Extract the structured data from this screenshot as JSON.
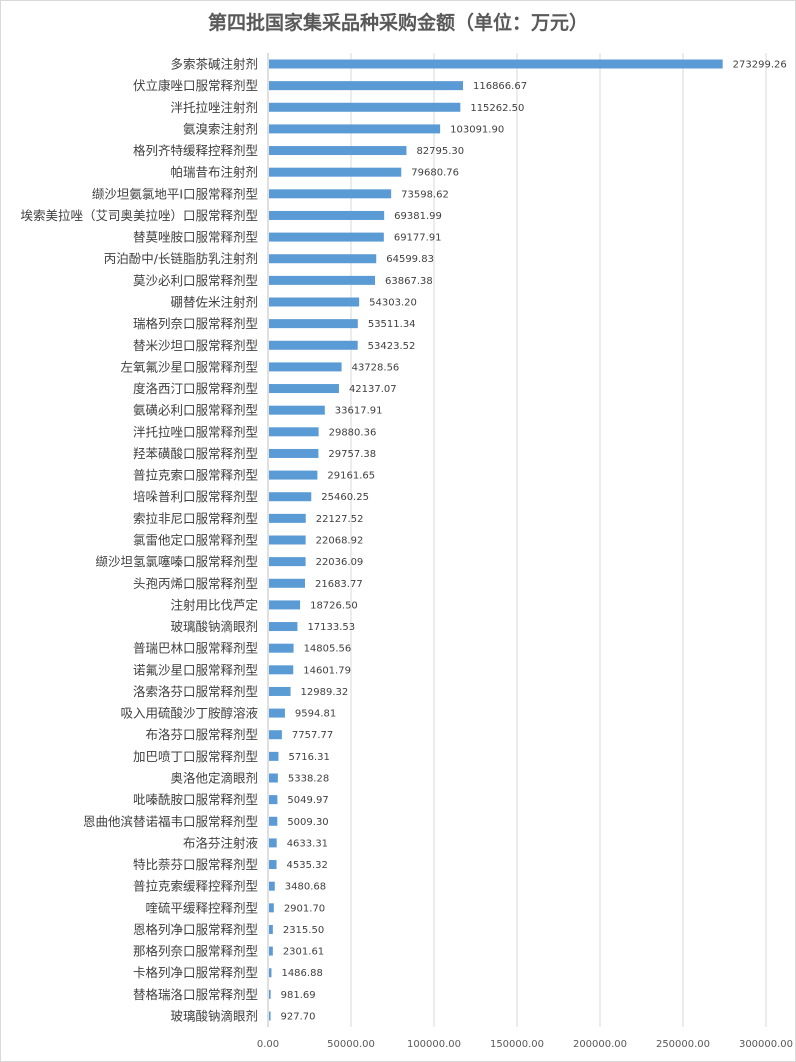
{
  "chart_data": {
    "type": "bar",
    "orientation": "horizontal",
    "title": "第四批国家集采品种采购金额（单位：万元）",
    "xlabel": "",
    "ylabel": "",
    "xlim": [
      0,
      300000
    ],
    "x_ticks": [
      "0.00",
      "50000.00",
      "100000.00",
      "150000.00",
      "200000.00",
      "250000.00",
      "300000.00"
    ],
    "grid": true,
    "legend": "none",
    "bar_color": "#5b9bd5",
    "categories": [
      "多索茶碱注射剂",
      "伏立康唑口服常释剂型",
      "泮托拉唑注射剂",
      "氨溴索注射剂",
      "格列齐特缓释控释剂型",
      "帕瑞昔布注射剂",
      "缬沙坦氨氯地平Ⅰ口服常释剂型",
      "埃索美拉唑（艾司奥美拉唑）口服常释剂型",
      "替莫唑胺口服常释剂型",
      "丙泊酚中/长链脂肪乳注射剂",
      "莫沙必利口服常释剂型",
      "硼替佐米注射剂",
      "瑞格列奈口服常释剂型",
      "替米沙坦口服常释剂型",
      "左氧氟沙星口服常释剂型",
      "度洛西汀口服常释剂型",
      "氨磺必利口服常释剂型",
      "泮托拉唑口服常释剂型",
      "羟苯磺酸口服常释剂型",
      "普拉克索口服常释剂型",
      "培哚普利口服常释剂型",
      "索拉非尼口服常释剂型",
      "氯雷他定口服常释剂型",
      "缬沙坦氢氯噻嗪口服常释剂型",
      "头孢丙烯口服常释剂型",
      "注射用比伐芦定",
      "玻璃酸钠滴眼剂",
      "普瑞巴林口服常释剂型",
      "诺氟沙星口服常释剂型",
      "洛索洛芬口服常释剂型",
      "吸入用硫酸沙丁胺醇溶液",
      "布洛芬口服常释剂型",
      "加巴喷丁口服常释剂型",
      "奥洛他定滴眼剂",
      "吡嗪酰胺口服常释剂型",
      "恩曲他滨替诺福韦口服常释剂型",
      "布洛芬注射液",
      "特比萘芬口服常释剂型",
      "普拉克索缓释控释剂型",
      "喹硫平缓释控释剂型",
      "恩格列净口服常释剂型",
      "那格列奈口服常释剂型",
      "卡格列净口服常释剂型",
      "替格瑞洛口服常释剂型",
      "玻璃酸钠滴眼剂"
    ],
    "values": [
      273299.26,
      116866.67,
      115262.5,
      103091.9,
      82795.3,
      79680.76,
      73598.62,
      69381.99,
      69177.91,
      64599.83,
      63867.38,
      54303.2,
      53511.34,
      53423.52,
      43728.56,
      42137.07,
      33617.91,
      29880.36,
      29757.38,
      29161.65,
      25460.25,
      22127.52,
      22068.92,
      22036.09,
      21683.77,
      18726.5,
      17133.53,
      14805.56,
      14601.79,
      12989.32,
      9594.81,
      7757.77,
      5716.31,
      5338.28,
      5049.97,
      5009.3,
      4633.31,
      4535.32,
      3480.68,
      2901.7,
      2315.5,
      2301.61,
      1486.88,
      981.69,
      927.7
    ],
    "value_labels": [
      "273299.26",
      "116866.67",
      "115262.50",
      "103091.90",
      "82795.30",
      "79680.76",
      "73598.62",
      "69381.99",
      "69177.91",
      "64599.83",
      "63867.38",
      "54303.20",
      "53511.34",
      "53423.52",
      "43728.56",
      "42137.07",
      "33617.91",
      "29880.36",
      "29757.38",
      "29161.65",
      "25460.25",
      "22127.52",
      "22068.92",
      "22036.09",
      "21683.77",
      "18726.50",
      "17133.53",
      "14805.56",
      "14601.79",
      "12989.32",
      "9594.81",
      "7757.77",
      "5716.31",
      "5338.28",
      "5049.97",
      "5009.30",
      "4633.31",
      "4535.32",
      "3480.68",
      "2901.70",
      "2315.50",
      "2301.61",
      "1486.88",
      "981.69",
      "927.70"
    ]
  }
}
